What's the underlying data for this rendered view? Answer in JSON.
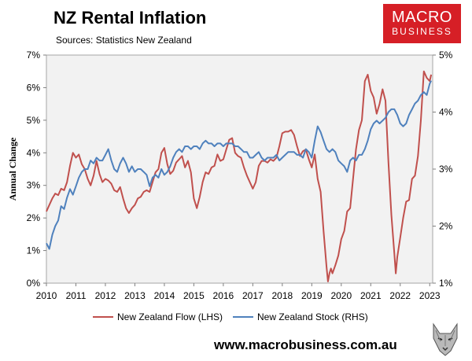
{
  "header": {
    "title": "NZ Rental Inflation",
    "subtitle": "Sources: Statistics New Zealand",
    "logo_line1": "MACRO",
    "logo_line2": "BUSINESS"
  },
  "footer": {
    "url": "www.macrobusiness.com.au"
  },
  "colors": {
    "flow": "#c0504d",
    "stock": "#4f81bd",
    "plot_bg": "#f2f2f2",
    "brand": "#d61f26"
  },
  "chart_data": {
    "type": "line",
    "ylabel": "Annual Change",
    "x_ticks": [
      "2010",
      "2011",
      "2012",
      "2013",
      "2014",
      "2015",
      "2016",
      "2017",
      "2018",
      "2019",
      "2020",
      "2021",
      "2022",
      "2023"
    ],
    "xlim": [
      2010,
      2023.1
    ],
    "y_left": {
      "ticks": [
        "0%",
        "1%",
        "2%",
        "3%",
        "4%",
        "5%",
        "6%",
        "7%"
      ],
      "range": [
        0,
        7
      ]
    },
    "y_right": {
      "ticks": [
        "1%",
        "2%",
        "3%",
        "4%",
        "5%"
      ],
      "range": [
        1,
        5
      ]
    },
    "legend_position": "bottom",
    "grid": false,
    "series": [
      {
        "name": "New Zealand Flow (LHS)",
        "axis": "left",
        "points": [
          [
            2010.0,
            2.2
          ],
          [
            2010.1,
            2.4
          ],
          [
            2010.2,
            2.6
          ],
          [
            2010.3,
            2.75
          ],
          [
            2010.4,
            2.7
          ],
          [
            2010.5,
            2.9
          ],
          [
            2010.6,
            2.85
          ],
          [
            2010.7,
            3.1
          ],
          [
            2010.8,
            3.6
          ],
          [
            2010.9,
            4.0
          ],
          [
            2011.0,
            3.85
          ],
          [
            2011.1,
            3.95
          ],
          [
            2011.2,
            3.65
          ],
          [
            2011.3,
            3.5
          ],
          [
            2011.4,
            3.2
          ],
          [
            2011.5,
            3.0
          ],
          [
            2011.6,
            3.3
          ],
          [
            2011.7,
            3.75
          ],
          [
            2011.8,
            3.35
          ],
          [
            2011.9,
            3.1
          ],
          [
            2012.0,
            3.2
          ],
          [
            2012.1,
            3.15
          ],
          [
            2012.2,
            3.05
          ],
          [
            2012.3,
            2.85
          ],
          [
            2012.4,
            2.8
          ],
          [
            2012.5,
            2.95
          ],
          [
            2012.6,
            2.6
          ],
          [
            2012.7,
            2.3
          ],
          [
            2012.8,
            2.15
          ],
          [
            2012.9,
            2.3
          ],
          [
            2013.0,
            2.4
          ],
          [
            2013.1,
            2.6
          ],
          [
            2013.2,
            2.65
          ],
          [
            2013.3,
            2.8
          ],
          [
            2013.4,
            2.85
          ],
          [
            2013.5,
            2.8
          ],
          [
            2013.6,
            3.1
          ],
          [
            2013.7,
            3.4
          ],
          [
            2013.8,
            3.5
          ],
          [
            2013.9,
            4.0
          ],
          [
            2014.0,
            4.15
          ],
          [
            2014.1,
            3.65
          ],
          [
            2014.2,
            3.35
          ],
          [
            2014.3,
            3.45
          ],
          [
            2014.4,
            3.7
          ],
          [
            2014.5,
            3.8
          ],
          [
            2014.6,
            3.9
          ],
          [
            2014.7,
            3.55
          ],
          [
            2014.8,
            3.75
          ],
          [
            2014.9,
            3.4
          ],
          [
            2015.0,
            2.6
          ],
          [
            2015.1,
            2.3
          ],
          [
            2015.2,
            2.65
          ],
          [
            2015.3,
            3.1
          ],
          [
            2015.4,
            3.4
          ],
          [
            2015.5,
            3.35
          ],
          [
            2015.6,
            3.55
          ],
          [
            2015.7,
            3.6
          ],
          [
            2015.8,
            3.95
          ],
          [
            2015.9,
            3.75
          ],
          [
            2016.0,
            3.8
          ],
          [
            2016.1,
            4.1
          ],
          [
            2016.2,
            4.4
          ],
          [
            2016.3,
            4.45
          ],
          [
            2016.4,
            4.0
          ],
          [
            2016.5,
            3.9
          ],
          [
            2016.6,
            3.85
          ],
          [
            2016.7,
            3.55
          ],
          [
            2016.8,
            3.3
          ],
          [
            2016.9,
            3.1
          ],
          [
            2017.0,
            2.9
          ],
          [
            2017.1,
            3.1
          ],
          [
            2017.2,
            3.6
          ],
          [
            2017.3,
            3.75
          ],
          [
            2017.4,
            3.75
          ],
          [
            2017.5,
            3.7
          ],
          [
            2017.6,
            3.8
          ],
          [
            2017.7,
            3.75
          ],
          [
            2017.8,
            3.85
          ],
          [
            2017.9,
            4.2
          ],
          [
            2018.0,
            4.6
          ],
          [
            2018.1,
            4.65
          ],
          [
            2018.2,
            4.65
          ],
          [
            2018.3,
            4.7
          ],
          [
            2018.4,
            4.55
          ],
          [
            2018.5,
            4.2
          ],
          [
            2018.6,
            3.9
          ],
          [
            2018.7,
            4.05
          ],
          [
            2018.8,
            4.1
          ],
          [
            2018.9,
            3.8
          ],
          [
            2019.0,
            3.55
          ],
          [
            2019.1,
            3.95
          ],
          [
            2019.2,
            3.2
          ],
          [
            2019.3,
            2.8
          ],
          [
            2019.4,
            1.6
          ],
          [
            2019.5,
            0.5
          ],
          [
            2019.55,
            0.05
          ],
          [
            2019.6,
            0.3
          ],
          [
            2019.65,
            0.45
          ],
          [
            2019.7,
            0.3
          ],
          [
            2019.8,
            0.55
          ],
          [
            2019.9,
            0.85
          ],
          [
            2020.0,
            1.35
          ],
          [
            2020.1,
            1.6
          ],
          [
            2020.2,
            2.2
          ],
          [
            2020.3,
            2.3
          ],
          [
            2020.4,
            3.2
          ],
          [
            2020.5,
            4.1
          ],
          [
            2020.6,
            4.7
          ],
          [
            2020.7,
            5.0
          ],
          [
            2020.8,
            6.2
          ],
          [
            2020.9,
            6.4
          ],
          [
            2021.0,
            5.9
          ],
          [
            2021.1,
            5.7
          ],
          [
            2021.2,
            5.2
          ],
          [
            2021.3,
            5.5
          ],
          [
            2021.4,
            5.95
          ],
          [
            2021.5,
            5.6
          ],
          [
            2021.6,
            3.7
          ],
          [
            2021.7,
            2.1
          ],
          [
            2021.8,
            0.9
          ],
          [
            2021.85,
            0.3
          ],
          [
            2021.9,
            0.8
          ],
          [
            2022.0,
            1.4
          ],
          [
            2022.1,
            2.0
          ],
          [
            2022.2,
            2.5
          ],
          [
            2022.3,
            2.55
          ],
          [
            2022.4,
            3.2
          ],
          [
            2022.5,
            3.3
          ],
          [
            2022.6,
            3.9
          ],
          [
            2022.7,
            5.0
          ],
          [
            2022.8,
            6.5
          ],
          [
            2022.9,
            6.3
          ],
          [
            2023.0,
            6.2
          ],
          [
            2023.05,
            6.4
          ]
        ]
      },
      {
        "name": "New Zealand Stock (RHS)",
        "axis": "right",
        "points": [
          [
            2010.0,
            1.7
          ],
          [
            2010.1,
            1.6
          ],
          [
            2010.2,
            1.85
          ],
          [
            2010.3,
            2.0
          ],
          [
            2010.4,
            2.1
          ],
          [
            2010.5,
            2.35
          ],
          [
            2010.6,
            2.3
          ],
          [
            2010.7,
            2.5
          ],
          [
            2010.8,
            2.65
          ],
          [
            2010.9,
            2.55
          ],
          [
            2011.0,
            2.7
          ],
          [
            2011.1,
            2.85
          ],
          [
            2011.2,
            2.95
          ],
          [
            2011.3,
            3.0
          ],
          [
            2011.4,
            3.0
          ],
          [
            2011.5,
            3.15
          ],
          [
            2011.6,
            3.1
          ],
          [
            2011.7,
            3.2
          ],
          [
            2011.8,
            3.15
          ],
          [
            2011.9,
            3.15
          ],
          [
            2012.0,
            3.25
          ],
          [
            2012.1,
            3.35
          ],
          [
            2012.2,
            3.15
          ],
          [
            2012.3,
            3.0
          ],
          [
            2012.4,
            2.95
          ],
          [
            2012.5,
            3.1
          ],
          [
            2012.6,
            3.2
          ],
          [
            2012.7,
            3.1
          ],
          [
            2012.8,
            2.95
          ],
          [
            2012.9,
            3.05
          ],
          [
            2013.0,
            2.95
          ],
          [
            2013.1,
            3.0
          ],
          [
            2013.2,
            3.0
          ],
          [
            2013.3,
            2.95
          ],
          [
            2013.4,
            2.9
          ],
          [
            2013.5,
            2.7
          ],
          [
            2013.6,
            2.85
          ],
          [
            2013.7,
            2.9
          ],
          [
            2013.8,
            2.85
          ],
          [
            2013.9,
            3.0
          ],
          [
            2014.0,
            2.9
          ],
          [
            2014.1,
            2.95
          ],
          [
            2014.2,
            3.05
          ],
          [
            2014.3,
            3.2
          ],
          [
            2014.4,
            3.3
          ],
          [
            2014.5,
            3.35
          ],
          [
            2014.6,
            3.3
          ],
          [
            2014.7,
            3.4
          ],
          [
            2014.8,
            3.4
          ],
          [
            2014.9,
            3.35
          ],
          [
            2015.0,
            3.4
          ],
          [
            2015.1,
            3.4
          ],
          [
            2015.2,
            3.35
          ],
          [
            2015.3,
            3.45
          ],
          [
            2015.4,
            3.5
          ],
          [
            2015.5,
            3.45
          ],
          [
            2015.6,
            3.45
          ],
          [
            2015.7,
            3.4
          ],
          [
            2015.8,
            3.45
          ],
          [
            2015.9,
            3.45
          ],
          [
            2016.0,
            3.4
          ],
          [
            2016.1,
            3.45
          ],
          [
            2016.2,
            3.45
          ],
          [
            2016.3,
            3.45
          ],
          [
            2016.4,
            3.4
          ],
          [
            2016.5,
            3.4
          ],
          [
            2016.6,
            3.35
          ],
          [
            2016.7,
            3.3
          ],
          [
            2016.8,
            3.3
          ],
          [
            2016.9,
            3.2
          ],
          [
            2017.0,
            3.2
          ],
          [
            2017.1,
            3.25
          ],
          [
            2017.2,
            3.3
          ],
          [
            2017.3,
            3.2
          ],
          [
            2017.4,
            3.15
          ],
          [
            2017.5,
            3.2
          ],
          [
            2017.6,
            3.2
          ],
          [
            2017.7,
            3.2
          ],
          [
            2017.8,
            3.25
          ],
          [
            2017.9,
            3.15
          ],
          [
            2018.0,
            3.2
          ],
          [
            2018.1,
            3.25
          ],
          [
            2018.2,
            3.3
          ],
          [
            2018.3,
            3.3
          ],
          [
            2018.4,
            3.3
          ],
          [
            2018.5,
            3.25
          ],
          [
            2018.6,
            3.25
          ],
          [
            2018.7,
            3.2
          ],
          [
            2018.8,
            3.35
          ],
          [
            2018.9,
            3.3
          ],
          [
            2019.0,
            3.2
          ],
          [
            2019.1,
            3.5
          ],
          [
            2019.2,
            3.75
          ],
          [
            2019.3,
            3.65
          ],
          [
            2019.4,
            3.5
          ],
          [
            2019.5,
            3.35
          ],
          [
            2019.6,
            3.3
          ],
          [
            2019.7,
            3.35
          ],
          [
            2019.8,
            3.3
          ],
          [
            2019.9,
            3.15
          ],
          [
            2020.0,
            3.1
          ],
          [
            2020.1,
            3.05
          ],
          [
            2020.2,
            2.95
          ],
          [
            2020.3,
            3.15
          ],
          [
            2020.4,
            3.2
          ],
          [
            2020.5,
            3.15
          ],
          [
            2020.6,
            3.25
          ],
          [
            2020.7,
            3.25
          ],
          [
            2020.8,
            3.35
          ],
          [
            2020.9,
            3.5
          ],
          [
            2021.0,
            3.7
          ],
          [
            2021.1,
            3.8
          ],
          [
            2021.2,
            3.85
          ],
          [
            2021.3,
            3.8
          ],
          [
            2021.4,
            3.85
          ],
          [
            2021.5,
            3.9
          ],
          [
            2021.6,
            4.0
          ],
          [
            2021.7,
            4.05
          ],
          [
            2021.8,
            4.05
          ],
          [
            2021.9,
            3.95
          ],
          [
            2022.0,
            3.8
          ],
          [
            2022.1,
            3.75
          ],
          [
            2022.2,
            3.8
          ],
          [
            2022.3,
            3.95
          ],
          [
            2022.4,
            4.05
          ],
          [
            2022.5,
            4.15
          ],
          [
            2022.6,
            4.2
          ],
          [
            2022.7,
            4.3
          ],
          [
            2022.8,
            4.35
          ],
          [
            2022.9,
            4.3
          ],
          [
            2023.0,
            4.5
          ],
          [
            2023.05,
            4.55
          ]
        ]
      }
    ]
  }
}
